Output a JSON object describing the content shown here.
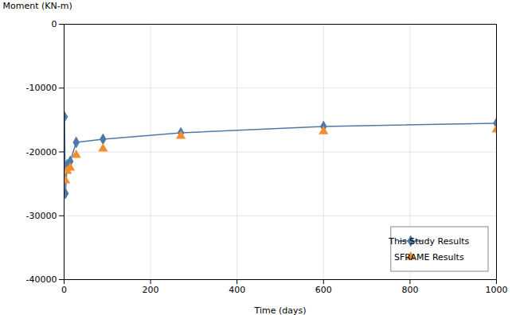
{
  "chart_data": {
    "type": "line",
    "xlabel": "Time (days)",
    "ylabel": "Moment (KN-m)",
    "xlim": [
      0,
      1000
    ],
    "ylim": [
      -40000,
      0
    ],
    "xticks": [
      0,
      200,
      400,
      600,
      800,
      1000
    ],
    "yticks": [
      0,
      -10000,
      -20000,
      -30000,
      -40000
    ],
    "grid": true,
    "legend": "lower right",
    "series": [
      {
        "name": "This Study Results",
        "type": "line",
        "marker": "diamond",
        "line_style": "solid",
        "x": [
          1,
          3,
          7,
          14,
          28,
          90,
          270,
          600,
          1000
        ],
        "values": [
          -14500,
          -26500,
          -22000,
          -21500,
          -18500,
          -18000,
          -17000,
          -16000,
          -15500
        ]
      },
      {
        "name": "SFRAME Results",
        "type": "scatter",
        "marker": "triangle",
        "line_style": "none",
        "x": [
          3,
          7,
          14,
          28,
          90,
          270,
          600,
          1000
        ],
        "values": [
          -24500,
          -23000,
          -22500,
          -20500,
          -19500,
          -17500,
          -16800,
          -16500
        ]
      }
    ]
  }
}
